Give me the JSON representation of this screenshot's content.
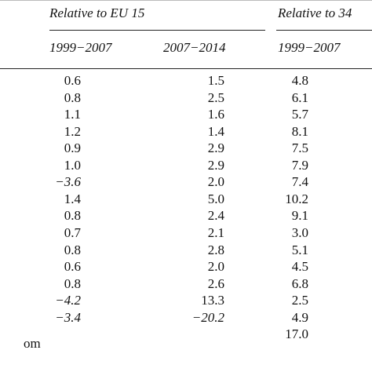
{
  "header": {
    "group1": "Relative to EU 15",
    "group2": "Relative to 34",
    "periods": [
      "1999−2007",
      "2007−2014",
      "1999−2007"
    ]
  },
  "row_label_fragment": "om",
  "rows": [
    {
      "c1": "0.6",
      "c2": "1.5",
      "c3": "4.8",
      "c1_neg": false,
      "c2_neg": false
    },
    {
      "c1": "0.8",
      "c2": "2.5",
      "c3": "6.1",
      "c1_neg": false,
      "c2_neg": false
    },
    {
      "c1": "1.1",
      "c2": "1.6",
      "c3": "5.7",
      "c1_neg": false,
      "c2_neg": false
    },
    {
      "c1": "1.2",
      "c2": "1.4",
      "c3": "8.1",
      "c1_neg": false,
      "c2_neg": false
    },
    {
      "c1": "0.9",
      "c2": "2.9",
      "c3": "7.5",
      "c1_neg": false,
      "c2_neg": false
    },
    {
      "c1": "1.0",
      "c2": "2.9",
      "c3": "7.9",
      "c1_neg": false,
      "c2_neg": false
    },
    {
      "c1": "−3.6",
      "c2": "2.0",
      "c3": "7.4",
      "c1_neg": true,
      "c2_neg": false
    },
    {
      "c1": "1.4",
      "c2": "5.0",
      "c3": "10.2",
      "c1_neg": false,
      "c2_neg": false
    },
    {
      "c1": "0.8",
      "c2": "2.4",
      "c3": "9.1",
      "c1_neg": false,
      "c2_neg": false
    },
    {
      "c1": "0.7",
      "c2": "2.1",
      "c3": "3.0",
      "c1_neg": false,
      "c2_neg": false
    },
    {
      "c1": "0.8",
      "c2": "2.8",
      "c3": "5.1",
      "c1_neg": false,
      "c2_neg": false
    },
    {
      "c1": "0.6",
      "c2": "2.0",
      "c3": "4.5",
      "c1_neg": false,
      "c2_neg": false
    },
    {
      "c1": "0.8",
      "c2": "2.6",
      "c3": "6.8",
      "c1_neg": false,
      "c2_neg": false
    },
    {
      "c1": "−4.2",
      "c2": "13.3",
      "c3": "2.5",
      "c1_neg": true,
      "c2_neg": false
    },
    {
      "c1": "−3.4",
      "c2": "−20.2",
      "c3": "4.9",
      "c1_neg": true,
      "c2_neg": true
    },
    {
      "c1": "",
      "c2": "",
      "c3": "17.0",
      "c1_neg": false,
      "c2_neg": false
    }
  ]
}
